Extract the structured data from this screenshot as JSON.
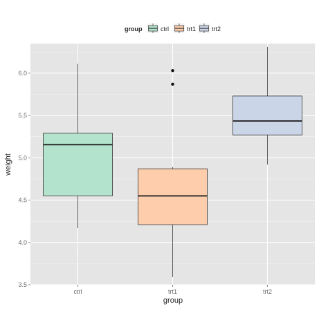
{
  "chart_data": {
    "type": "boxplot",
    "xlabel": "group",
    "ylabel": "weight",
    "categories": [
      "ctrl",
      "trt1",
      "trt2"
    ],
    "ylim": [
      3.5,
      6.35
    ],
    "yticks": [
      "3.5",
      "4.0",
      "4.5",
      "5.0",
      "5.5",
      "6.0"
    ],
    "grid": true,
    "legend": {
      "title": "group",
      "placement": "top",
      "entries": [
        "ctrl",
        "trt1",
        "trt2"
      ]
    },
    "colors": {
      "ctrl": "#b3e2cd",
      "trt1": "#fdcdac",
      "trt2": "#cbd5e8",
      "panel": "#e5e5e5",
      "grid": "#ffffff"
    },
    "series": [
      {
        "name": "ctrl",
        "min": 4.17,
        "q1": 4.55,
        "median": 5.155,
        "q3": 5.29,
        "max": 6.11,
        "outliers": []
      },
      {
        "name": "trt1",
        "min": 3.59,
        "q1": 4.21,
        "median": 4.55,
        "q3": 4.87,
        "max": 4.89,
        "outliers": [
          5.87,
          6.03
        ]
      },
      {
        "name": "trt2",
        "min": 4.92,
        "q1": 5.27,
        "median": 5.435,
        "q3": 5.73,
        "max": 6.31,
        "outliers": []
      }
    ]
  }
}
